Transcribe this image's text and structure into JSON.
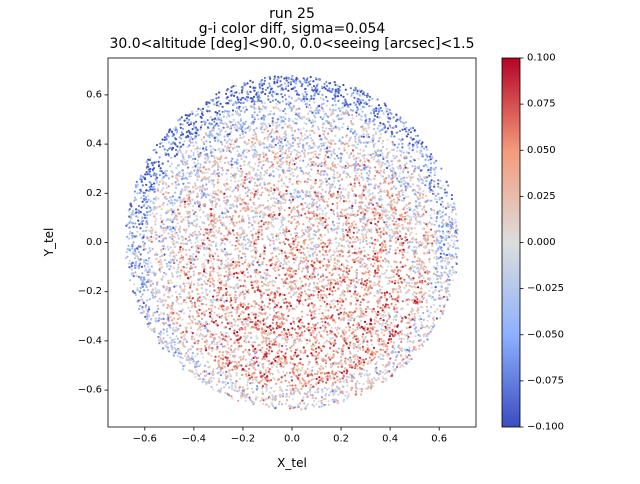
{
  "chart_data": {
    "type": "scatter",
    "title": [
      "run 25",
      "g-i color diff,  sigma=0.054",
      "30.0<altitude [deg]<90.0, 0.0<seeing [arcsec]<1.5"
    ],
    "xlabel": "X_tel",
    "ylabel": "Y_tel",
    "xlim": [
      -0.75,
      0.75
    ],
    "ylim": [
      -0.75,
      0.75
    ],
    "xticks": [
      -0.6,
      -0.4,
      -0.2,
      0.0,
      0.2,
      0.4,
      0.6
    ],
    "yticks": [
      -0.6,
      -0.4,
      -0.2,
      0.0,
      0.2,
      0.4,
      0.6
    ],
    "xtick_labels": [
      "−0.6",
      "−0.4",
      "−0.2",
      "0.0",
      "0.2",
      "0.4",
      "0.6"
    ],
    "ytick_labels": [
      "−0.6",
      "−0.4",
      "−0.2",
      "0.0",
      "0.2",
      "0.4",
      "0.6"
    ],
    "grid": false,
    "colormap": "coolwarm",
    "colorbar": {
      "range": [
        -0.1,
        0.1
      ],
      "ticks": [
        -0.1,
        -0.075,
        -0.05,
        -0.025,
        0.0,
        0.025,
        0.05,
        0.075,
        0.1
      ],
      "tick_labels": [
        "−0.100",
        "−0.075",
        "−0.050",
        "−0.025",
        "0.000",
        "0.025",
        "0.050",
        "0.075",
        "0.100"
      ]
    },
    "points_model": {
      "description_note": "dense disk of points colored by g-i diff",
      "disk_radius": 0.68,
      "sigma": 0.054,
      "count": 9000
    },
    "colors": {
      "low": "#3b4cc0",
      "mid": "#dddddd",
      "high": "#b40426"
    }
  }
}
